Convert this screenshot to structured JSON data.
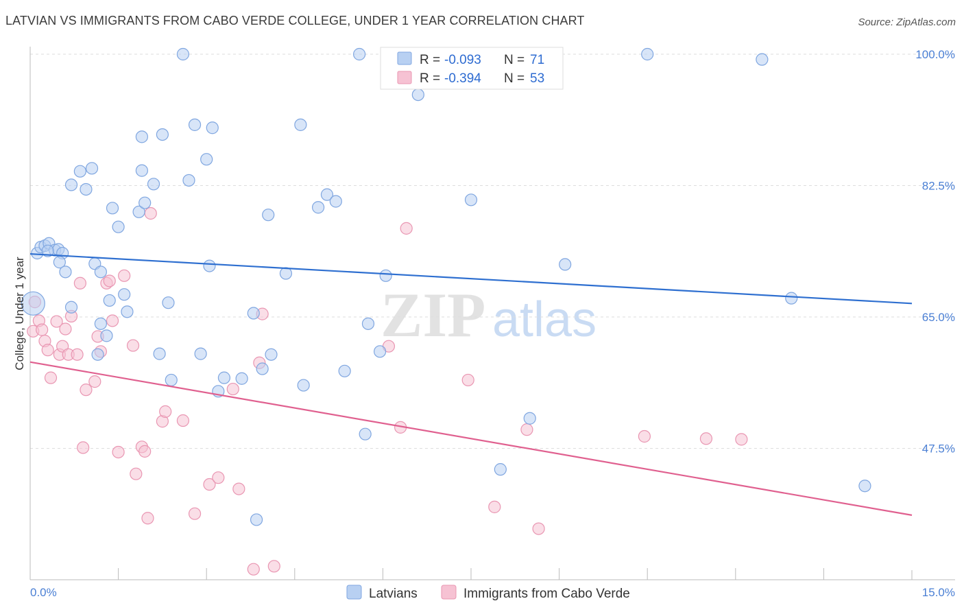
{
  "title": "LATVIAN VS IMMIGRANTS FROM CABO VERDE COLLEGE, UNDER 1 YEAR CORRELATION CHART",
  "source": "Source: ZipAtlas.com",
  "watermark": {
    "zip": "ZIP",
    "atlas": "atlas"
  },
  "colors": {
    "latvian_fill": "#b8d0f2",
    "latvian_stroke": "#7fa6e0",
    "latvian_line": "#2e6fd0",
    "cabo_fill": "#f6c2d3",
    "cabo_stroke": "#e996b2",
    "cabo_line": "#e0608f",
    "grid": "#dddddd",
    "tick_label": "#4a7fd4"
  },
  "legend": {
    "rows": [
      {
        "r_label": "R = ",
        "r_value": "-0.093",
        "n_label": "N = ",
        "n_value": "71"
      },
      {
        "r_label": "R = ",
        "r_value": "-0.394",
        "n_label": "N = ",
        "n_value": "53"
      }
    ]
  },
  "chart_data": {
    "type": "scatter",
    "title": "LATVIAN VS IMMIGRANTS FROM CABO VERDE COLLEGE, UNDER 1 YEAR CORRELATION CHART",
    "xlabel": "",
    "ylabel": "College, Under 1 year",
    "xlim": [
      0,
      15
    ],
    "ylim": [
      30,
      100
    ],
    "x_tick_labels": [
      "0.0%",
      "15.0%"
    ],
    "y_ticks": [
      47.5,
      65.0,
      82.5,
      100.0
    ],
    "y_tick_labels": [
      "47.5%",
      "65.0%",
      "82.5%",
      "100.0%"
    ],
    "grid": true,
    "series": [
      {
        "name": "Latvians",
        "trend": {
          "x": [
            0,
            15
          ],
          "y": [
            73.4,
            66.8
          ]
        },
        "points": [
          [
            0.05,
            66.8
          ],
          [
            0.12,
            73.5
          ],
          [
            0.18,
            74.3
          ],
          [
            0.25,
            74.5
          ],
          [
            0.32,
            74.8
          ],
          [
            0.42,
            73.9
          ],
          [
            0.48,
            74.0
          ],
          [
            0.55,
            73.5
          ],
          [
            0.5,
            72.3
          ],
          [
            0.6,
            71.0
          ],
          [
            0.7,
            66.3
          ],
          [
            0.7,
            82.6
          ],
          [
            0.85,
            84.4
          ],
          [
            0.95,
            82.0
          ],
          [
            1.05,
            84.8
          ],
          [
            1.1,
            72.1
          ],
          [
            1.2,
            71.0
          ],
          [
            1.15,
            60.0
          ],
          [
            1.2,
            64.1
          ],
          [
            1.3,
            62.5
          ],
          [
            1.35,
            67.2
          ],
          [
            1.4,
            79.5
          ],
          [
            1.5,
            77.0
          ],
          [
            1.6,
            68.0
          ],
          [
            1.65,
            65.7
          ],
          [
            1.9,
            89.0
          ],
          [
            1.85,
            79.0
          ],
          [
            1.95,
            80.2
          ],
          [
            1.9,
            84.5
          ],
          [
            2.1,
            82.7
          ],
          [
            2.25,
            89.3
          ],
          [
            2.2,
            60.1
          ],
          [
            2.35,
            66.9
          ],
          [
            2.4,
            56.6
          ],
          [
            2.6,
            100.0
          ],
          [
            2.7,
            83.2
          ],
          [
            2.8,
            90.6
          ],
          [
            2.9,
            60.1
          ],
          [
            3.0,
            86.0
          ],
          [
            3.05,
            71.8
          ],
          [
            3.1,
            90.2
          ],
          [
            3.2,
            55.1
          ],
          [
            3.3,
            56.9
          ],
          [
            3.6,
            56.8
          ],
          [
            3.8,
            65.5
          ],
          [
            3.85,
            38.0
          ],
          [
            3.95,
            58.1
          ],
          [
            4.05,
            78.6
          ],
          [
            4.1,
            60.0
          ],
          [
            4.35,
            70.8
          ],
          [
            4.6,
            90.6
          ],
          [
            4.65,
            55.9
          ],
          [
            4.9,
            79.6
          ],
          [
            5.05,
            81.3
          ],
          [
            5.2,
            80.4
          ],
          [
            5.35,
            57.8
          ],
          [
            5.6,
            100.0
          ],
          [
            5.7,
            49.4
          ],
          [
            5.75,
            64.1
          ],
          [
            5.95,
            60.4
          ],
          [
            6.05,
            70.5
          ],
          [
            6.6,
            94.6
          ],
          [
            7.5,
            80.6
          ],
          [
            8.0,
            44.7
          ],
          [
            8.5,
            51.5
          ],
          [
            9.1,
            72.0
          ],
          [
            10.5,
            100.0
          ],
          [
            12.45,
            99.3
          ],
          [
            12.95,
            67.5
          ],
          [
            14.2,
            42.5
          ],
          [
            0.3,
            73.8
          ]
        ]
      },
      {
        "name": "Immigrants from Cabo Verde",
        "trend": {
          "x": [
            0,
            15
          ],
          "y": [
            59.0,
            38.6
          ]
        },
        "points": [
          [
            0.05,
            63.1
          ],
          [
            0.08,
            67.0
          ],
          [
            0.15,
            64.5
          ],
          [
            0.2,
            63.3
          ],
          [
            0.25,
            61.8
          ],
          [
            0.3,
            60.6
          ],
          [
            0.35,
            56.9
          ],
          [
            0.45,
            64.4
          ],
          [
            0.5,
            60.0
          ],
          [
            0.55,
            61.1
          ],
          [
            0.6,
            63.4
          ],
          [
            0.65,
            60.0
          ],
          [
            0.7,
            65.1
          ],
          [
            0.8,
            60.0
          ],
          [
            0.85,
            69.5
          ],
          [
            0.9,
            47.6
          ],
          [
            0.95,
            55.3
          ],
          [
            1.1,
            56.4
          ],
          [
            1.15,
            62.4
          ],
          [
            1.2,
            60.4
          ],
          [
            1.3,
            69.5
          ],
          [
            1.35,
            69.8
          ],
          [
            1.4,
            64.5
          ],
          [
            1.5,
            47.0
          ],
          [
            1.6,
            70.5
          ],
          [
            1.75,
            61.2
          ],
          [
            1.8,
            44.1
          ],
          [
            1.9,
            47.7
          ],
          [
            1.95,
            47.1
          ],
          [
            2.0,
            38.2
          ],
          [
            2.05,
            78.8
          ],
          [
            2.25,
            51.1
          ],
          [
            2.3,
            52.4
          ],
          [
            2.6,
            51.2
          ],
          [
            2.8,
            38.8
          ],
          [
            3.05,
            42.7
          ],
          [
            3.2,
            43.6
          ],
          [
            3.45,
            55.4
          ],
          [
            3.55,
            42.1
          ],
          [
            3.8,
            31.4
          ],
          [
            3.9,
            58.9
          ],
          [
            3.95,
            65.4
          ],
          [
            4.15,
            31.8
          ],
          [
            6.1,
            61.1
          ],
          [
            6.3,
            50.3
          ],
          [
            6.4,
            76.8
          ],
          [
            7.45,
            56.6
          ],
          [
            7.9,
            39.7
          ],
          [
            8.45,
            50.0
          ],
          [
            8.65,
            36.8
          ],
          [
            10.45,
            49.1
          ],
          [
            11.5,
            48.8
          ],
          [
            12.1,
            48.7
          ]
        ]
      }
    ]
  },
  "bottom_legend": {
    "latvians": "Latvians",
    "cabo": "Immigrants from Cabo Verde"
  }
}
